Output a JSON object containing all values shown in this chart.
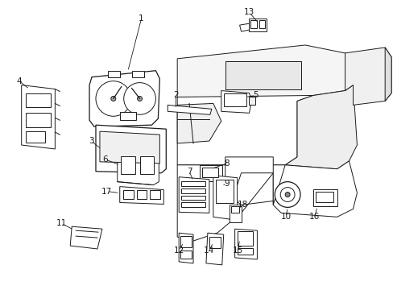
{
  "background_color": "#ffffff",
  "figure_width": 4.89,
  "figure_height": 3.6,
  "dpi": 100,
  "line_color": "#1a1a1a",
  "text_color": "#1a1a1a",
  "label_fontsize": 7.5,
  "line_width": 0.7
}
